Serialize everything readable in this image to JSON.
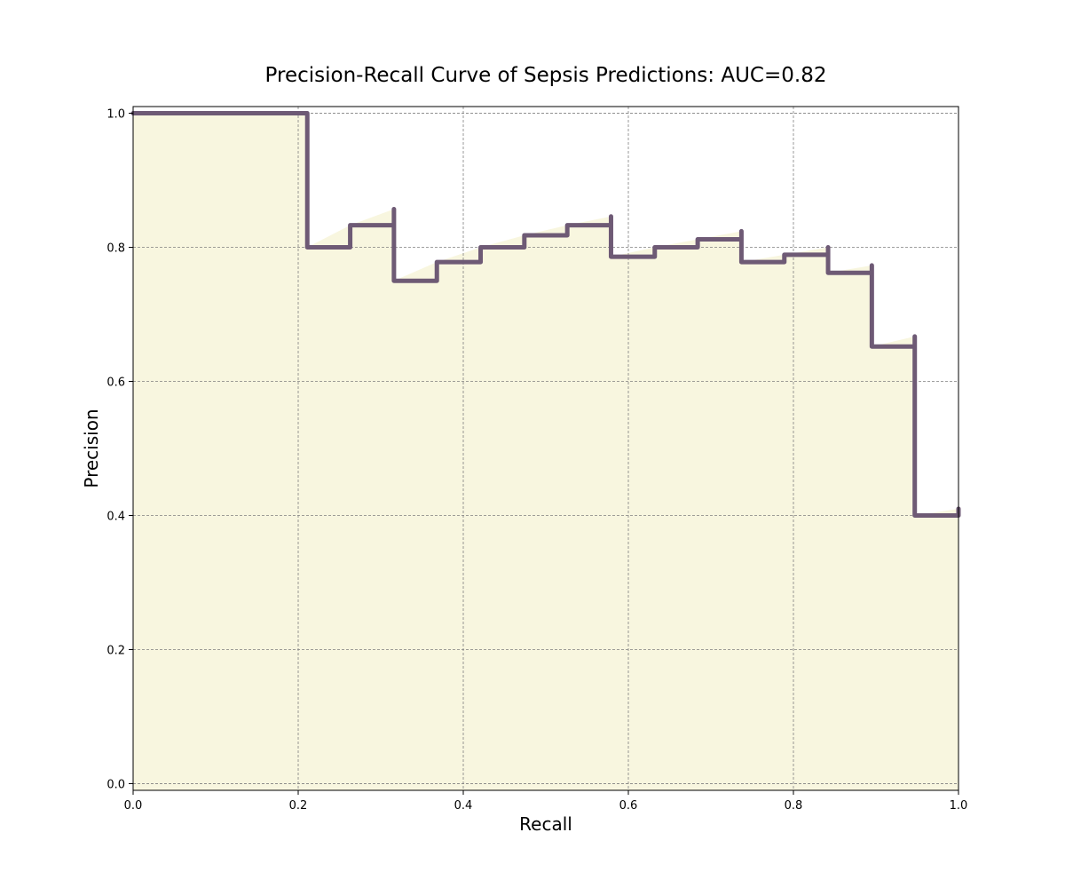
{
  "chart_data": {
    "type": "line",
    "title": "Precision-Recall Curve of Sepsis Predictions: AUC=0.82",
    "xlabel": "Recall",
    "ylabel": "Precision",
    "xlim": [
      0.0,
      1.0
    ],
    "ylim": [
      -0.01,
      1.01
    ],
    "xticks": [
      0.0,
      0.2,
      0.4,
      0.6,
      0.8,
      1.0
    ],
    "xtick_labels": [
      "0.0",
      "0.2",
      "0.4",
      "0.6",
      "0.8",
      "1.0"
    ],
    "yticks": [
      0.0,
      0.2,
      0.4,
      0.6,
      0.8,
      1.0
    ],
    "ytick_labels": [
      "0.0",
      "0.2",
      "0.4",
      "0.6",
      "0.8",
      "1.0"
    ],
    "grid": true,
    "line_style": "step",
    "line_color": "#6e5a75",
    "fill_color": "#f8f6df",
    "series": [
      {
        "recall": [
          0.0,
          0.211,
          0.211,
          0.263,
          0.316,
          0.316,
          0.368,
          0.421,
          0.474,
          0.526,
          0.579,
          0.579,
          0.632,
          0.684,
          0.737,
          0.737,
          0.789,
          0.842,
          0.842,
          0.895,
          0.895,
          0.947,
          0.947,
          1.0
        ],
        "precision": [
          1.0,
          1.0,
          0.8,
          0.833,
          0.857,
          0.75,
          0.778,
          0.8,
          0.818,
          0.833,
          0.846,
          0.786,
          0.8,
          0.812,
          0.824,
          0.778,
          0.789,
          0.8,
          0.762,
          0.773,
          0.652,
          0.667,
          0.4,
          0.41
        ]
      }
    ]
  }
}
